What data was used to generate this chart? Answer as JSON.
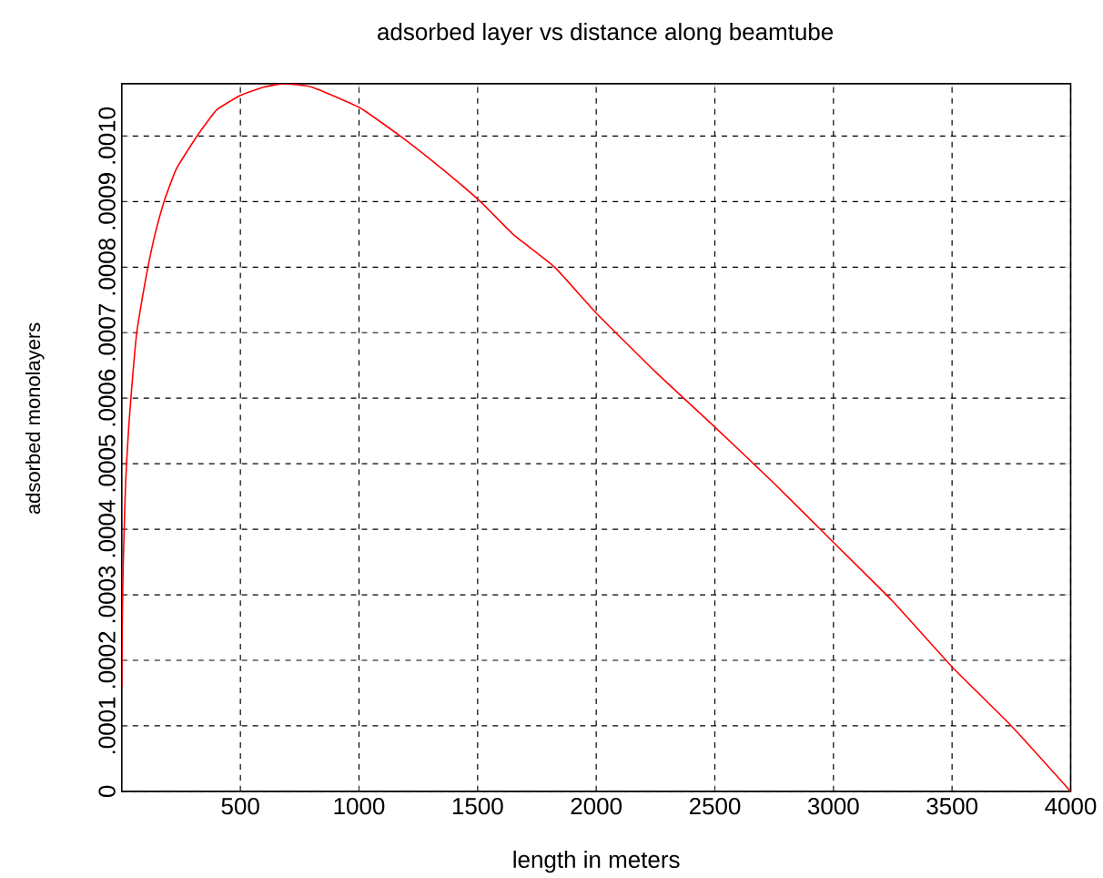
{
  "chart_data": {
    "type": "line",
    "title": "adsorbed layer vs distance along beamtube",
    "xlabel": "length in meters",
    "ylabel": "adsorbed monolayers",
    "x": [
      0,
      2,
      5,
      10,
      15,
      20,
      30,
      45,
      63,
      85,
      110,
      140,
      178,
      230,
      317,
      400,
      500,
      600,
      685,
      800,
      1000,
      1174,
      1350,
      1512,
      1650,
      1825,
      2000,
      2250,
      2500,
      2750,
      3000,
      3250,
      3500,
      3750,
      4000
    ],
    "values": [
      0.00016,
      0.00026,
      0.00033,
      0.0004,
      0.00046,
      0.0005,
      0.00056,
      0.00063,
      0.0007,
      0.00075,
      0.0008,
      0.00085,
      0.0009,
      0.00095,
      0.001,
      0.00104,
      0.001062,
      0.001075,
      0.00108,
      0.001075,
      0.001044,
      0.001,
      0.00095,
      0.0009,
      0.00085,
      0.0008,
      0.00073,
      0.00064,
      0.000556,
      0.00047,
      0.00038,
      0.00029,
      0.00019,
      0.0001,
      0
    ],
    "color": "#ff0000",
    "xlim": [
      0,
      4000
    ],
    "ylim": [
      0,
      0.00108
    ],
    "xticks": [
      500,
      1000,
      1500,
      2000,
      2500,
      3000,
      3500,
      4000
    ],
    "yticks": [
      0,
      {
        "value": 0.0001,
        "label": ".0001"
      },
      {
        "value": 0.0002,
        "label": ".0002"
      },
      {
        "value": 0.0003,
        "label": ".0003"
      },
      {
        "value": 0.0004,
        "label": ".0004"
      },
      {
        "value": 0.0005,
        "label": ".0005"
      },
      {
        "value": 0.0006,
        "label": ".0006"
      },
      {
        "value": 0.0007,
        "label": ".0007"
      },
      {
        "value": 0.0008,
        "label": ".0008"
      },
      {
        "value": 0.0009,
        "label": ".0009"
      },
      {
        "value": 0.001,
        "label": ".0010"
      }
    ],
    "grid": true
  }
}
